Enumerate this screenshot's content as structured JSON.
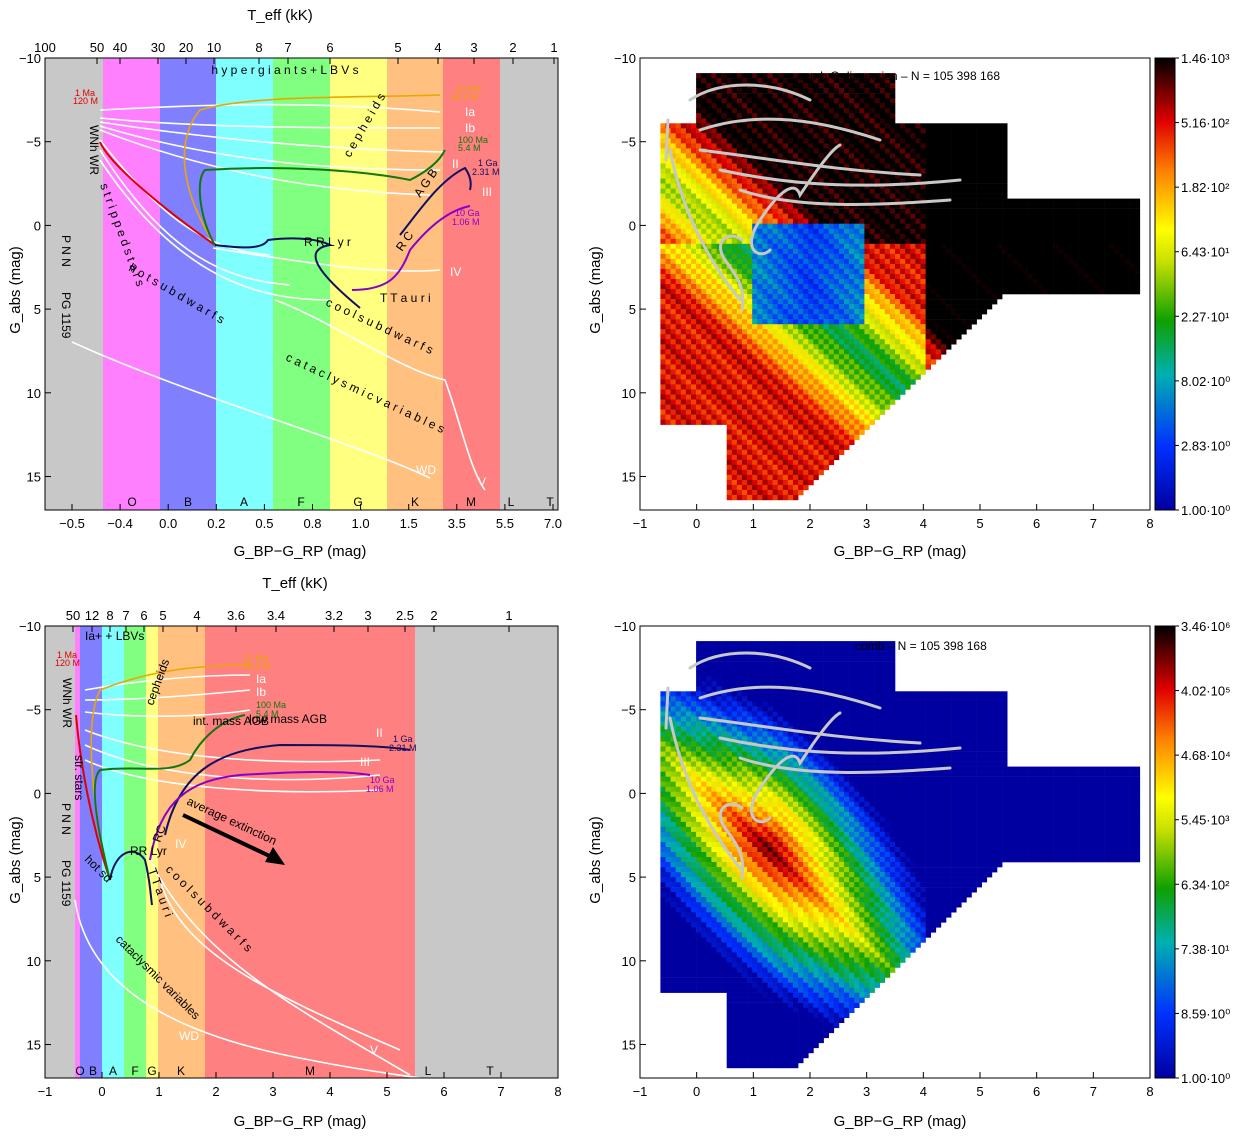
{
  "chart_data": [
    {
      "type": "diagram",
      "panel": "top-left",
      "title": "",
      "top_axis_label": "T_eff (kK)",
      "top_ticks": [
        "100",
        "50",
        "40",
        "30",
        "20",
        "10",
        "8",
        "7",
        "6",
        "5",
        "4",
        "3",
        "2",
        "1"
      ],
      "xlabel": "G_BP−G_RP (mag)",
      "ylabel": "G_abs (mag)",
      "x_ticks": [
        "−0.5",
        "−0.4",
        "0.0",
        "0.2",
        "0.5",
        "0.8",
        "1.0",
        "1.5",
        "3.5",
        "5.5",
        "7.0"
      ],
      "y_ticks": [
        "−10",
        "−5",
        "0",
        "5",
        "10",
        "15"
      ],
      "ylim": [
        -10,
        17
      ],
      "spectral_classes": [
        "O",
        "B",
        "A",
        "F",
        "G",
        "K",
        "M",
        "L",
        "T"
      ],
      "region_labels": [
        "h y p e r g i a n t s + L B V s",
        "WNh WR",
        "s t r i p p e d  s t a r s",
        "P N N",
        "h o t  s u b d w a r f s",
        "PG 1159",
        "c o o l  s u b d w a r f s",
        "c a t a c l y s m i c  v a r i a b l e s",
        "c e p h e i d s",
        "R R  L y r",
        "A G B",
        "R C",
        "T  T a u r i",
        "WD",
        "V",
        "IV",
        "III",
        "II",
        "Ib",
        "Ia"
      ],
      "tracks": [
        {
          "name": "1 Ma",
          "mass": "120 M",
          "color": "#e00000"
        },
        {
          "name": "10 Ma",
          "mass": "18.3 M",
          "color": "#e8a800"
        },
        {
          "name": "100 Ma",
          "mass": "5.4 M",
          "color": "#107810"
        },
        {
          "name": "1 Ga",
          "mass": "2.31 M",
          "color": "#101060"
        },
        {
          "name": "10 Ga",
          "mass": "1.06 M",
          "color": "#8a00c8"
        }
      ],
      "sol": "Sol"
    },
    {
      "type": "heatmap",
      "panel": "top-right",
      "title": "comb G dispersion – N = 105 398 168",
      "xlabel": "G_BP−G_RP (mag)",
      "ylabel": "G_abs (mag)",
      "xlim": [
        -1,
        8
      ],
      "ylim": [
        -10,
        17
      ],
      "x_ticks": [
        "−1",
        "0",
        "1",
        "2",
        "3",
        "4",
        "5",
        "6",
        "7",
        "8"
      ],
      "y_ticks": [
        "−10",
        "−5",
        "0",
        "5",
        "10",
        "15"
      ],
      "colorbar_ticks": [
        "1.46·10³",
        "5.16·10²",
        "1.82·10²",
        "6.43·10¹",
        "2.27·10¹",
        "8.02·10⁰",
        "2.83·10⁰",
        "1.00·10⁰"
      ]
    },
    {
      "type": "diagram",
      "panel": "bottom-left",
      "top_axis_label": "T_eff (kK)",
      "top_ticks": [
        "50",
        "12",
        "8",
        "7",
        "6",
        "5",
        "4",
        "3.6",
        "3.4",
        "3.2",
        "3",
        "2.5",
        "2",
        "1"
      ],
      "xlabel": "G_BP−G_RP (mag)",
      "ylabel": "G_abs (mag)",
      "xlim": [
        -1,
        8
      ],
      "ylim": [
        -10,
        17
      ],
      "x_ticks": [
        "−1",
        "0",
        "1",
        "2",
        "3",
        "4",
        "5",
        "6",
        "7",
        "8"
      ],
      "y_ticks": [
        "−10",
        "−5",
        "0",
        "5",
        "10",
        "15"
      ],
      "spectral_classes": [
        "O",
        "B",
        "A",
        "F",
        "G",
        "K",
        "M",
        "L",
        "T"
      ],
      "region_labels": [
        "Ia+ + LBVs",
        "WNh WR",
        "str. stars",
        "P N N",
        "hot sd",
        "PG 1159",
        "c o o l  s u b d w a r f s",
        "cataclysmic variables",
        "cepheids",
        "int. mass AGB",
        "low mass AGB",
        "RR Lyr",
        "RC",
        "T  T a u r i",
        "average extinction",
        "WD",
        "V",
        "IV",
        "III",
        "II",
        "Ib",
        "Ia"
      ],
      "tracks": [
        {
          "name": "1 Ma",
          "mass": "120 M",
          "color": "#e00000"
        },
        {
          "name": "10 Ma",
          "mass": "18.3 M",
          "color": "#e8a800"
        },
        {
          "name": "100 Ma",
          "mass": "5.4 M",
          "color": "#107810"
        },
        {
          "name": "1 Ga",
          "mass": "2.31 M",
          "color": "#101060"
        },
        {
          "name": "10 Ga",
          "mass": "1.06 M",
          "color": "#8a00c8"
        }
      ],
      "sol": "Sol"
    },
    {
      "type": "heatmap",
      "panel": "bottom-right",
      "title": "comb – N = 105 398 168",
      "xlabel": "G_BP−G_RP (mag)",
      "ylabel": "G_abs (mag)",
      "xlim": [
        -1,
        8
      ],
      "ylim": [
        -10,
        17
      ],
      "x_ticks": [
        "−1",
        "0",
        "1",
        "2",
        "3",
        "4",
        "5",
        "6",
        "7",
        "8"
      ],
      "y_ticks": [
        "−10",
        "−5",
        "0",
        "5",
        "10",
        "15"
      ],
      "colorbar_ticks": [
        "3.46·10⁶",
        "4.02·10⁵",
        "4.68·10⁴",
        "5.45·10³",
        "6.34·10²",
        "7.38·10¹",
        "8.59·10⁰",
        "1.00·10⁰"
      ]
    }
  ]
}
